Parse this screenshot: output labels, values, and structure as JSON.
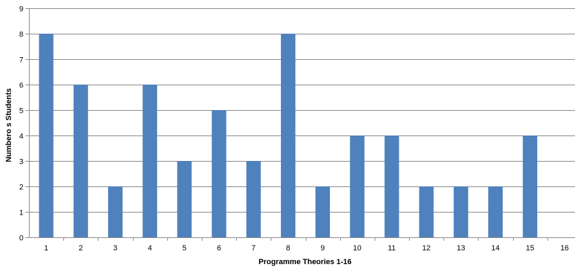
{
  "chart_data": {
    "type": "bar",
    "title": "",
    "xlabel": "Programme Theories 1-16",
    "ylabel": "Numbero s Students",
    "categories": [
      "1",
      "2",
      "3",
      "4",
      "5",
      "6",
      "7",
      "8",
      "9",
      "10",
      "11",
      "12",
      "13",
      "14",
      "15",
      "16"
    ],
    "series": [
      {
        "values": [
          8,
          6,
          2,
          6,
          3,
          5,
          3,
          8,
          2,
          4,
          4,
          2,
          2,
          2,
          4,
          0
        ]
      }
    ],
    "ylim": [
      0,
      9
    ],
    "yticks": [
      0,
      1,
      2,
      3,
      4,
      5,
      6,
      7,
      8,
      9
    ],
    "grid": true,
    "legend": "none",
    "bar_color": "#4F81BD",
    "grid_color": "#878787",
    "axis_color": "#878787"
  }
}
